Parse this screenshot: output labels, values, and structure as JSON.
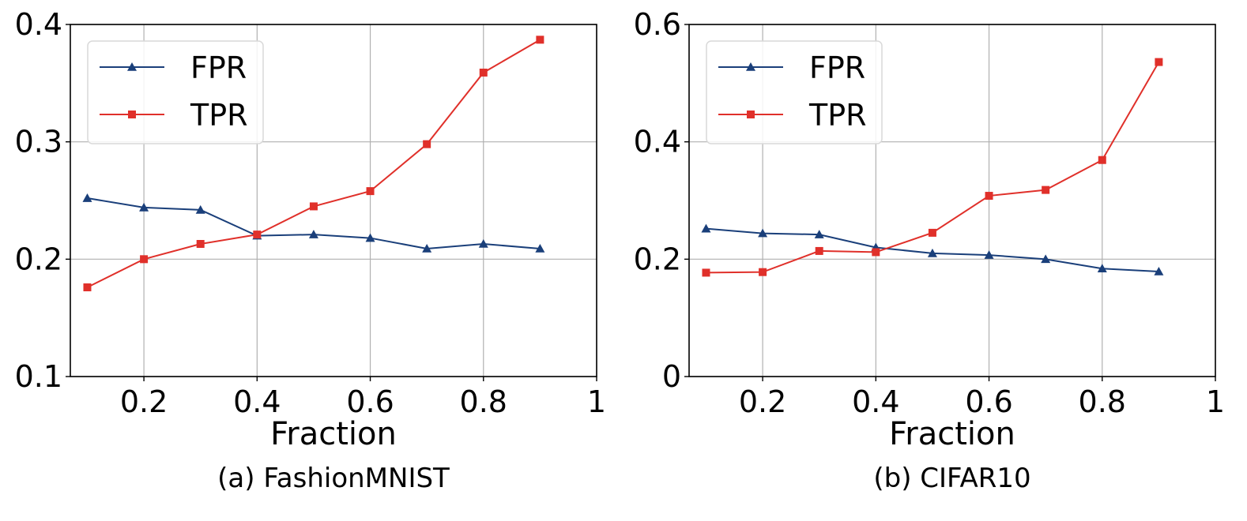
{
  "chart_data": [
    {
      "type": "line",
      "caption": "(a) FashionMNIST",
      "xlabel": "Fraction",
      "ylabel": "",
      "xlim": [
        0.07,
        1.0
      ],
      "ylim": [
        0.1,
        0.4
      ],
      "xticks": [
        0.2,
        0.4,
        0.6,
        0.8,
        1.0
      ],
      "xtick_labels": [
        "0.2",
        "0.4",
        "0.6",
        "0.8",
        "1"
      ],
      "yticks": [
        0.1,
        0.2,
        0.3,
        0.4
      ],
      "ytick_labels": [
        "0.1",
        "0.2",
        "0.3",
        "0.4"
      ],
      "grid": true,
      "legend_position": "top-left",
      "x": [
        0.1,
        0.2,
        0.3,
        0.4,
        0.5,
        0.6,
        0.7,
        0.8,
        0.9
      ],
      "series": [
        {
          "name": "FPR",
          "color": "#1a3f7a",
          "marker": "triangle",
          "values": [
            0.252,
            0.244,
            0.242,
            0.22,
            0.221,
            0.218,
            0.209,
            0.213,
            0.209
          ]
        },
        {
          "name": "TPR",
          "color": "#e0302a",
          "marker": "square",
          "values": [
            0.176,
            0.2,
            0.213,
            0.221,
            0.245,
            0.258,
            0.298,
            0.359,
            0.387
          ]
        }
      ]
    },
    {
      "type": "line",
      "caption": "(b) CIFAR10",
      "xlabel": "Fraction",
      "ylabel": "",
      "xlim": [
        0.07,
        1.0
      ],
      "ylim": [
        0.0,
        0.6
      ],
      "xticks": [
        0.2,
        0.4,
        0.6,
        0.8,
        1.0
      ],
      "xtick_labels": [
        "0.2",
        "0.4",
        "0.6",
        "0.8",
        "1"
      ],
      "yticks": [
        0.0,
        0.2,
        0.4,
        0.6
      ],
      "ytick_labels": [
        "0",
        "0.2",
        "0.4",
        "0.6"
      ],
      "grid": true,
      "legend_position": "top-left",
      "x": [
        0.1,
        0.2,
        0.3,
        0.4,
        0.5,
        0.6,
        0.7,
        0.8,
        0.9
      ],
      "series": [
        {
          "name": "FPR",
          "color": "#1a3f7a",
          "marker": "triangle",
          "values": [
            0.252,
            0.244,
            0.242,
            0.22,
            0.21,
            0.207,
            0.2,
            0.184,
            0.179
          ]
        },
        {
          "name": "TPR",
          "color": "#e0302a",
          "marker": "square",
          "values": [
            0.177,
            0.178,
            0.214,
            0.212,
            0.245,
            0.308,
            0.318,
            0.369,
            0.536
          ]
        }
      ]
    }
  ]
}
